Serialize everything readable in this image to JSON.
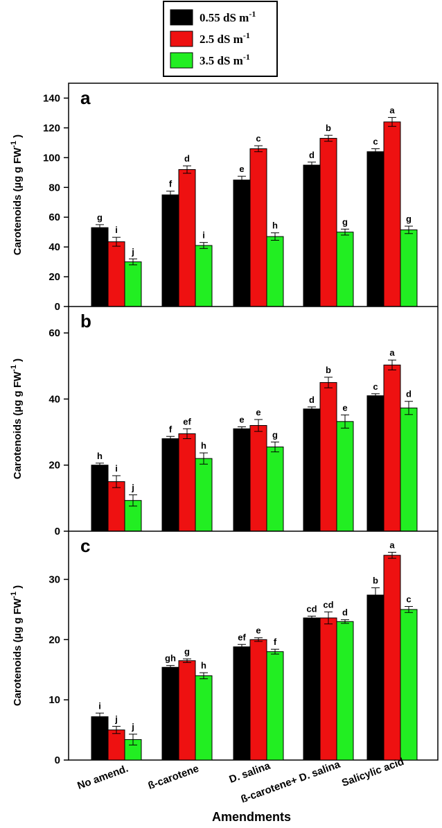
{
  "chart_data": {
    "type": "bar",
    "legend": [
      {
        "label": "0.55 dS m",
        "sup": "-1",
        "color": "#000000"
      },
      {
        "label": "2.5 dS m",
        "sup": "-1",
        "color": "#ee1111"
      },
      {
        "label": "3.5 dS m",
        "sup": "-1",
        "color": "#22ee22"
      }
    ],
    "categories": [
      "No amend.",
      "ß-carotene",
      "D. salina",
      "ß-carotene+ D. salina",
      "Salicylic acid"
    ],
    "xlabel": "Amendments",
    "ylabel_main": "Carotenoids (µg g FW",
    "ylabel_sup": "-1",
    "ylabel_close": ")",
    "panels": [
      {
        "letter": "a",
        "ylim": [
          0,
          150
        ],
        "yticks": [
          0,
          20,
          40,
          60,
          80,
          100,
          120,
          140
        ],
        "series": [
          {
            "name": "0.55 dS m-1",
            "values": [
              53,
              75,
              85,
              95,
              104
            ],
            "errors": [
              2,
              2.5,
              2.5,
              2,
              2
            ],
            "labels": [
              "g",
              "f",
              "e",
              "d",
              "c"
            ]
          },
          {
            "name": "2.5 dS m-1",
            "values": [
              43.5,
              92,
              106,
              113,
              124
            ],
            "errors": [
              3,
              2.5,
              2,
              2,
              3
            ],
            "labels": [
              "i",
              "d",
              "c",
              "b",
              "a"
            ]
          },
          {
            "name": "3.5 dS m-1",
            "values": [
              30,
              41,
              47,
              50,
              51.5
            ],
            "errors": [
              2,
              2,
              2.5,
              2,
              2.5
            ],
            "labels": [
              "j",
              "i",
              "h",
              "g",
              "g"
            ]
          }
        ]
      },
      {
        "letter": "b",
        "ylim": [
          0,
          68
        ],
        "yticks": [
          0,
          20,
          40,
          60
        ],
        "series": [
          {
            "name": "0.55 dS m-1",
            "values": [
              20,
              28,
              31,
              37,
              41
            ],
            "errors": [
              0.6,
              0.7,
              0.6,
              0.6,
              0.6
            ],
            "labels": [
              "h",
              "f",
              "e",
              "d",
              "c"
            ]
          },
          {
            "name": "2.5 dS m-1",
            "values": [
              15,
              29.5,
              32,
              45,
              50.3
            ],
            "errors": [
              1.8,
              1.5,
              1.8,
              1.6,
              1.5
            ],
            "labels": [
              "i",
              "ef",
              "e",
              "b",
              "a"
            ]
          },
          {
            "name": "3.5 dS m-1",
            "values": [
              9.3,
              22,
              25.5,
              33.2,
              37.3
            ],
            "errors": [
              1.7,
              1.7,
              1.5,
              2,
              2
            ],
            "labels": [
              "j",
              "h",
              "g",
              "e",
              "d"
            ]
          }
        ]
      },
      {
        "letter": "c",
        "ylim": [
          0,
          38
        ],
        "yticks": [
          0,
          10,
          20,
          30
        ],
        "series": [
          {
            "name": "0.55 dS m-1",
            "values": [
              7.2,
              15.4,
              18.8,
              23.6,
              27.4
            ],
            "errors": [
              0.6,
              0.3,
              0.4,
              0.3,
              1.2
            ],
            "labels": [
              "i",
              "gh",
              "ef",
              "cd",
              "b"
            ]
          },
          {
            "name": "2.5 dS m-1",
            "values": [
              5,
              16.5,
              20,
              23.6,
              34
            ],
            "errors": [
              0.6,
              0.3,
              0.3,
              1,
              0.5
            ],
            "labels": [
              "j",
              "g",
              "e",
              "cd",
              "a"
            ]
          },
          {
            "name": "3.5 dS m-1",
            "values": [
              3.4,
              14,
              18,
              23,
              25
            ],
            "errors": [
              0.9,
              0.5,
              0.4,
              0.3,
              0.5
            ],
            "labels": [
              "j",
              "h",
              "f",
              "d",
              "c"
            ]
          }
        ]
      }
    ]
  }
}
